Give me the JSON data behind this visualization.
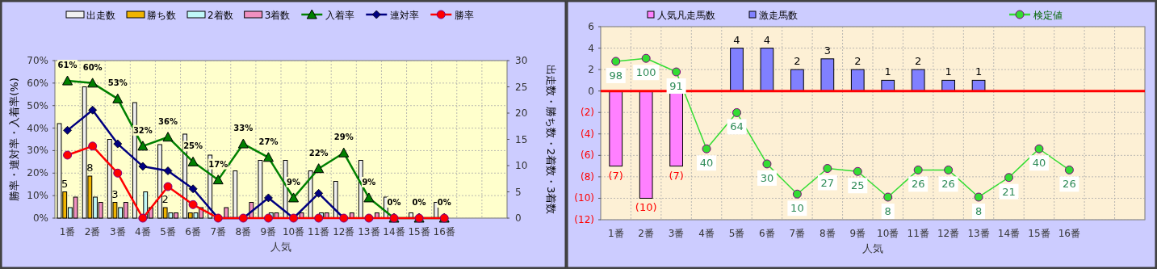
{
  "chart_data": [
    {
      "type": "bar",
      "xlabel": "人気",
      "ylabel": "勝率・連対率・入着率(%)",
      "y2label": "出走数・勝ち数・2着数・3着数",
      "legend": "top",
      "grid": true,
      "categories": [
        "1番",
        "2番",
        "3番",
        "4番",
        "5番",
        "6番",
        "7番",
        "8番",
        "9番",
        "10番",
        "11番",
        "12番",
        "13番",
        "14番",
        "15番",
        "16番",
        null,
        null
      ],
      "ylim": [
        0,
        70
      ],
      "yticks": [
        {
          "value": 0,
          "label": "0%"
        },
        {
          "value": 10,
          "label": "10%"
        },
        {
          "value": 20,
          "label": "20%"
        },
        {
          "value": 30,
          "label": "30%"
        },
        {
          "value": 40,
          "label": "40%"
        },
        {
          "value": 50,
          "label": "50%"
        },
        {
          "value": 60,
          "label": "60%"
        },
        {
          "value": 70,
          "label": "70%"
        }
      ],
      "y2lim": [
        0,
        30
      ],
      "y2ticks": [
        0,
        5,
        10,
        15,
        20,
        25,
        30
      ],
      "series": [
        {
          "name": "出走数",
          "axis": "y2",
          "color": "#f0f0f0",
          "values": [
            18,
            25,
            15,
            22,
            14,
            16,
            12,
            9,
            11,
            11,
            9,
            7,
            11,
            4,
            1,
            3,
            null,
            null
          ]
        },
        {
          "name": "勝ち数",
          "axis": "y2",
          "color": "#f0b400",
          "values": [
            5,
            8,
            3,
            0,
            2,
            1,
            0,
            0,
            0,
            0,
            0,
            0,
            0,
            0,
            0,
            0,
            null,
            null
          ],
          "value_labels": [
            "5",
            "8",
            "3",
            null,
            "2",
            null,
            null,
            null,
            null,
            null,
            null,
            null,
            null,
            null,
            null,
            null,
            null,
            null
          ]
        },
        {
          "name": "2着数",
          "axis": "y2",
          "color": "#c0f8f8",
          "values": [
            2,
            4,
            2,
            5,
            1,
            1,
            0,
            0,
            1,
            0,
            1,
            0,
            0,
            0,
            0,
            0,
            null,
            null
          ]
        },
        {
          "name": "3着数",
          "axis": "y2",
          "color": "#f090c0",
          "values": [
            4,
            3,
            3,
            2,
            1,
            2,
            2,
            3,
            1,
            1,
            1,
            1,
            1,
            0,
            0,
            0,
            null,
            null
          ]
        },
        {
          "name": "入着率",
          "type": "line",
          "marker": "triangle",
          "color": "#008000",
          "values": [
            61,
            60,
            53,
            32,
            36,
            25,
            17,
            33,
            27,
            9,
            22,
            29,
            9,
            0,
            0,
            0,
            null,
            null
          ],
          "value_labels": [
            "61%",
            "60%",
            "53%",
            "32%",
            "36%",
            "25%",
            "17%",
            "33%",
            "27%",
            "9%",
            "22%",
            "29%",
            "9%",
            "0%",
            "0%",
            "0%",
            null,
            null
          ]
        },
        {
          "name": "連対率",
          "type": "line",
          "marker": "diamond",
          "color": "#000080",
          "values": [
            39,
            48,
            33,
            23,
            21,
            13,
            0,
            0,
            9,
            0,
            11,
            0,
            null,
            null,
            null,
            null,
            null,
            null
          ]
        },
        {
          "name": "勝率",
          "type": "line",
          "marker": "circle",
          "color": "#ff0000",
          "values": [
            28,
            32,
            20,
            0,
            14,
            6,
            0,
            0,
            0,
            0,
            0,
            0,
            0,
            0,
            0,
            0,
            null,
            null
          ]
        }
      ]
    },
    {
      "type": "bar",
      "stacked": true,
      "xlabel": "人気",
      "legend": "top",
      "grid": true,
      "categories": [
        "1番",
        "2番",
        "3番",
        "4番",
        "5番",
        "6番",
        "7番",
        "8番",
        "9番",
        "10番",
        "11番",
        "12番",
        "13番",
        "14番",
        "15番",
        "16番",
        null,
        null
      ],
      "ylim": [
        -12,
        6
      ],
      "yticks": [
        {
          "value": -12,
          "label": "(12)"
        },
        {
          "value": -10,
          "label": "(10)"
        },
        {
          "value": -8,
          "label": "(8)"
        },
        {
          "value": -6,
          "label": "(6)"
        },
        {
          "value": -4,
          "label": "(4)"
        },
        {
          "value": -2,
          "label": "(2)"
        },
        0,
        2,
        4,
        6
      ],
      "y2lim": [
        -7,
        121
      ],
      "ref_lines": [
        {
          "axis": "y",
          "value": 0,
          "color": "#ff0000"
        }
      ],
      "series": [
        {
          "name": "人気凡走馬数",
          "color": "#ff80ff",
          "values": [
            -7,
            -10,
            -7,
            null,
            null,
            null,
            null,
            null,
            null,
            null,
            null,
            null,
            null,
            null,
            null,
            null,
            null,
            null
          ],
          "value_labels": [
            "(7)",
            "(10)",
            "(7)",
            null,
            null,
            null,
            null,
            null,
            null,
            null,
            null,
            null,
            null,
            null,
            null,
            null,
            null,
            null
          ]
        },
        {
          "name": "激走馬数",
          "color": "#8080ff",
          "values": [
            null,
            null,
            null,
            null,
            4,
            4,
            2,
            3,
            2,
            1,
            2,
            1,
            1,
            null,
            null,
            null,
            null,
            null
          ],
          "value_labels": [
            null,
            null,
            null,
            null,
            "4",
            "4",
            "2",
            "3",
            "2",
            "1",
            "2",
            "1",
            "1",
            null,
            null,
            null,
            null,
            null
          ]
        },
        {
          "name": "検定値",
          "type": "line",
          "marker": "circle",
          "axis": "y2",
          "color": "#33dd33",
          "values": [
            98,
            100,
            91,
            40,
            64,
            30,
            10,
            27,
            25,
            8,
            26,
            26,
            8,
            21,
            40,
            26,
            null,
            null
          ],
          "value_labels": [
            "98",
            "100",
            "91",
            "40",
            "64",
            "30",
            "10",
            "27",
            "25",
            "8",
            "26",
            "26",
            "8",
            "21",
            "40",
            "26",
            null,
            null
          ]
        }
      ]
    }
  ]
}
